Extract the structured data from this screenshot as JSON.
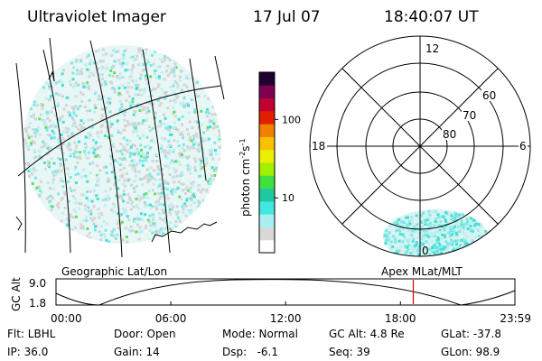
{
  "header": {
    "title": "Ultraviolet Imager",
    "date": "17 Jul 07",
    "time": "18:40:07 UT"
  },
  "colorbar": {
    "unit_label": "photon cm",
    "unit_exp1": "-2",
    "unit_mid": "s",
    "unit_exp2": "-1",
    "ticks": [
      {
        "label": "100",
        "value": 100
      },
      {
        "label": "10",
        "value": 10
      }
    ],
    "range": [
      2,
      400
    ],
    "colors": [
      "#ffffff",
      "#d8d8d8",
      "#a8f0f0",
      "#40e8e0",
      "#20c8a0",
      "#40e040",
      "#a0f000",
      "#e8f000",
      "#f8c000",
      "#f08000",
      "#e02000",
      "#c00030",
      "#800050",
      "#200030"
    ]
  },
  "polar_plot": {
    "mlt_labels": {
      "top": "12",
      "left": "18",
      "right": "6",
      "bottom": "0"
    },
    "lat_labels": [
      "60",
      "70",
      "80"
    ]
  },
  "altitude_plot": {
    "left_title": "Geographic Lat/Lon",
    "right_title": "Apex MLat/MLT",
    "ylabel": "GC Alt",
    "yticks": [
      "9.0",
      "1.8"
    ],
    "xticks": [
      "00:00",
      "06:00",
      "12:00",
      "18:00",
      "23:59"
    ],
    "current_hour": 18.67,
    "marker_color": "#e00000"
  },
  "status": {
    "flt": "Flt: LBHL",
    "ip": "IP: 36.0",
    "door": "Door: Open",
    "gain": "Gain: 14",
    "mode": "Mode: Normal",
    "dsp": "Dsp:   -6.1",
    "gc_alt": "GC Alt: 4.8 Re",
    "seq": "Seq: 39",
    "glat": "GLat: -37.8",
    "glon": "GLon: 98.9"
  }
}
